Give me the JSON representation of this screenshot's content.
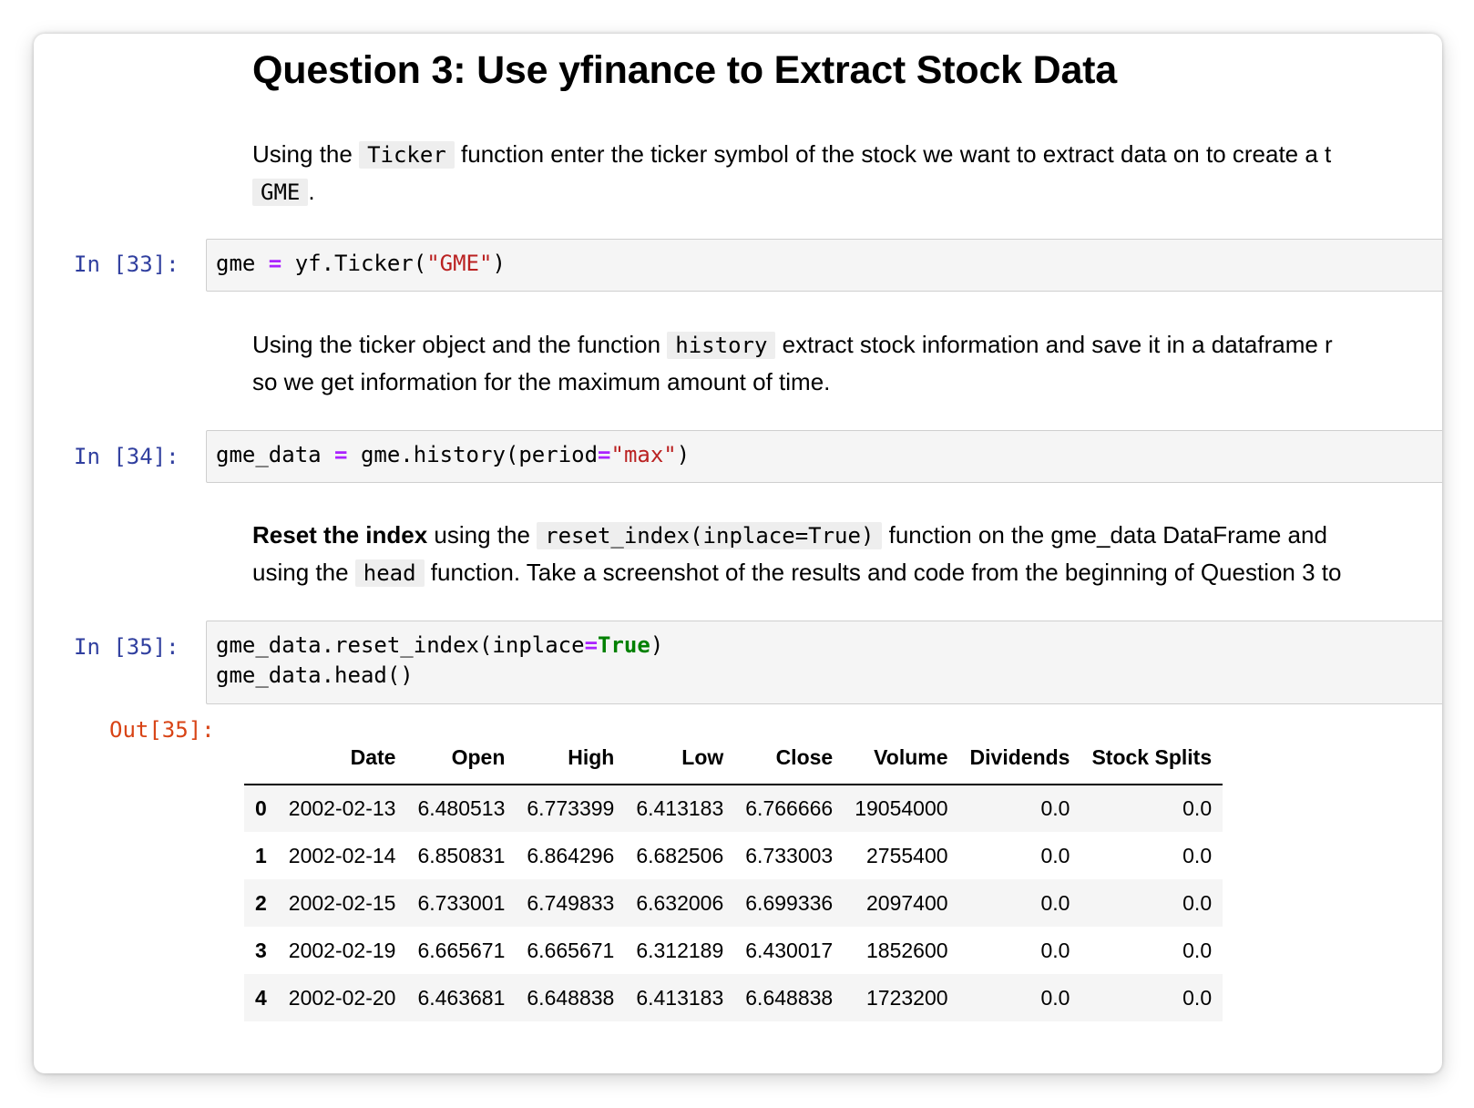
{
  "markdown": {
    "title": "Question 3: Use yfinance to Extract Stock Data",
    "p1": {
      "pre": "Using the ",
      "code1": "Ticker",
      "mid": " function enter the ticker symbol of the stock we want to extract data on to create a t",
      "code2": "GME",
      "end": "."
    },
    "p2": {
      "pre": "Using the ticker object and the function ",
      "code1": "history",
      "mid": " extract stock information and save it in a dataframe r",
      "line2": "so we get information for the maximum amount of time."
    },
    "p3": {
      "bold": "Reset the index",
      "pre": " using the ",
      "code1": "reset_index(inplace=True)",
      "mid": " function on the gme_data DataFrame and",
      "line2pre": "using the ",
      "code2": "head",
      "line2end": " function. Take a screenshot of the results and code from the beginning of Question 3 to"
    }
  },
  "cells": {
    "c33": {
      "prompt": "In [33]:",
      "var": "gme ",
      "op": "=",
      "call": " yf.Ticker(",
      "arg": "\"GME\"",
      "close": ")"
    },
    "c34": {
      "prompt": "In [34]:",
      "var": "gme_data ",
      "op": "=",
      "call": " gme.history(period",
      "op2": "=",
      "arg": "\"max\"",
      "close": ")"
    },
    "c35": {
      "prompt": "In [35]:",
      "l1a": "gme_data.reset_index(inplace",
      "op": "=",
      "kw": "True",
      "l1b": ")",
      "l2": "gme_data.head()"
    },
    "out35": {
      "prompt": "Out[35]:"
    }
  },
  "table": {
    "columns": [
      "",
      "Date",
      "Open",
      "High",
      "Low",
      "Close",
      "Volume",
      "Dividends",
      "Stock Splits"
    ],
    "rows": [
      [
        "0",
        "2002-02-13",
        "6.480513",
        "6.773399",
        "6.413183",
        "6.766666",
        "19054000",
        "0.0",
        "0.0"
      ],
      [
        "1",
        "2002-02-14",
        "6.850831",
        "6.864296",
        "6.682506",
        "6.733003",
        "2755400",
        "0.0",
        "0.0"
      ],
      [
        "2",
        "2002-02-15",
        "6.733001",
        "6.749833",
        "6.632006",
        "6.699336",
        "2097400",
        "0.0",
        "0.0"
      ],
      [
        "3",
        "2002-02-19",
        "6.665671",
        "6.665671",
        "6.312189",
        "6.430017",
        "1852600",
        "0.0",
        "0.0"
      ],
      [
        "4",
        "2002-02-20",
        "6.463681",
        "6.648838",
        "6.413183",
        "6.648838",
        "1723200",
        "0.0",
        "0.0"
      ]
    ]
  }
}
